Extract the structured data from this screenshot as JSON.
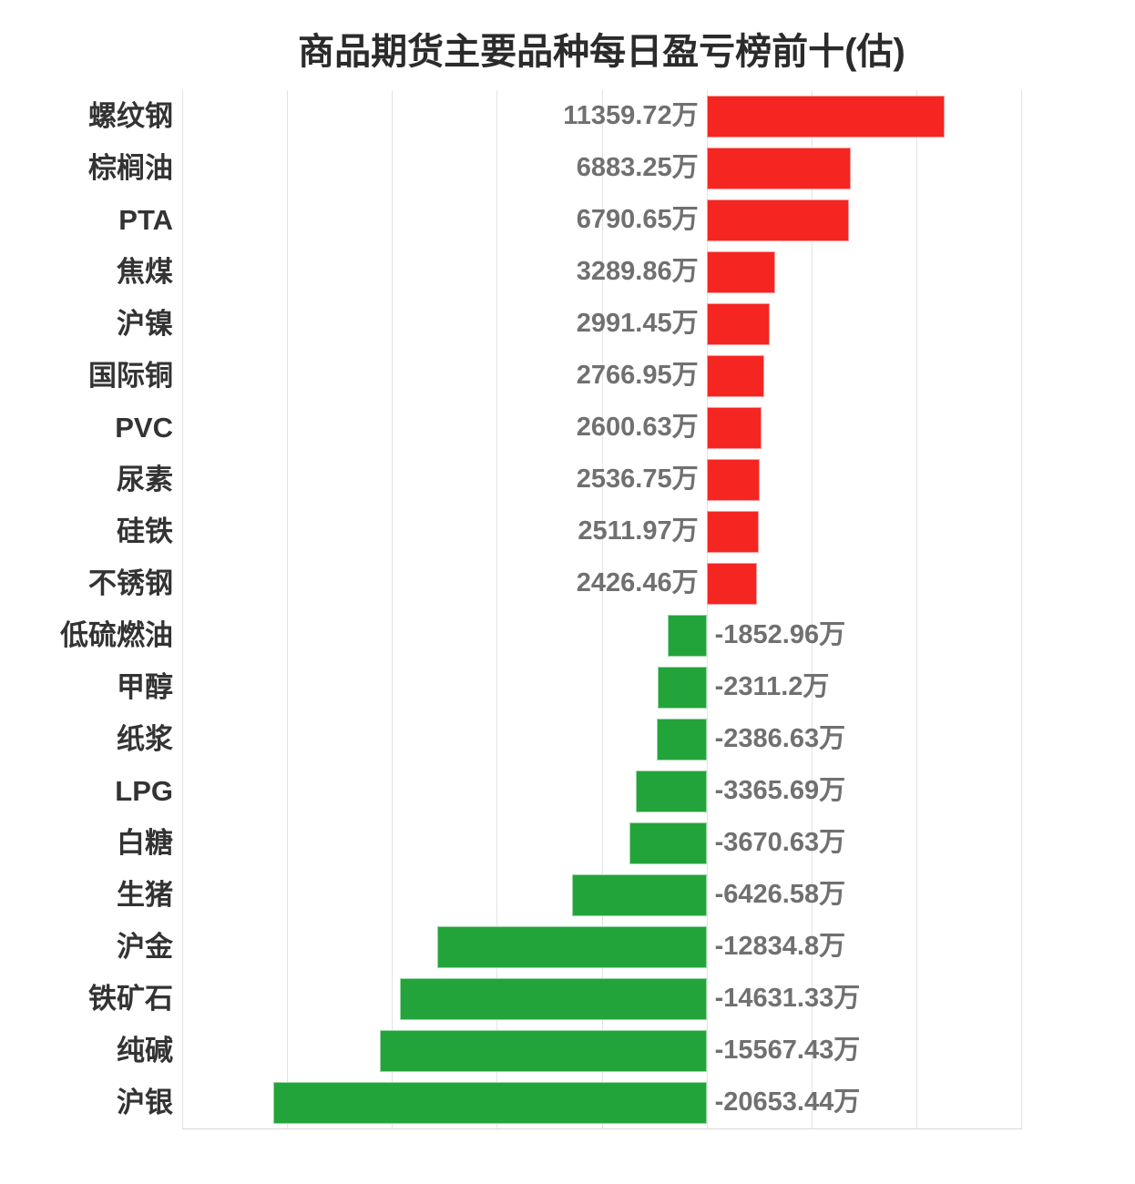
{
  "chart_data": {
    "type": "bar",
    "orientation": "horizontal",
    "title": "商品期货主要品种每日盈亏榜前十(估)",
    "unit": "万",
    "categories": [
      "螺纹钢",
      "棕榈油",
      "PTA",
      "焦煤",
      "沪镍",
      "国际铜",
      "PVC",
      "尿素",
      "硅铁",
      "不锈钢",
      "低硫燃油",
      "甲醇",
      "纸浆",
      "LPG",
      "白糖",
      "生猪",
      "沪金",
      "铁矿石",
      "纯碱",
      "沪银"
    ],
    "values": [
      11359.72,
      6883.25,
      6790.65,
      3289.86,
      2991.45,
      2766.95,
      2600.63,
      2536.75,
      2511.97,
      2426.46,
      -1852.96,
      -2311.2,
      -2386.63,
      -3365.69,
      -3670.63,
      -6426.58,
      -12834.8,
      -14631.33,
      -15567.43,
      -20653.44
    ],
    "value_labels": [
      "11359.72万",
      "6883.25万",
      "6790.65万",
      "3289.86万",
      "2991.45万",
      "2766.95万",
      "2600.63万",
      "2536.75万",
      "2511.97万",
      "2426.46万",
      "-1852.96万",
      "-2311.2万",
      "-2386.63万",
      "-3365.69万",
      "-3670.63万",
      "-6426.58万",
      "-12834.8万",
      "-14631.33万",
      "-15567.43万",
      "-20653.44万"
    ],
    "xlim": [
      -25000,
      15000
    ],
    "grid_interval": 5000,
    "grid": true,
    "legend": "none",
    "axis_tick_labels": "none",
    "colors": {
      "positive": "#F52522",
      "negative": "#23A43A",
      "gridline": "#e4e4e4",
      "axis": "#d9d9d9",
      "title": "#2b2b2b",
      "category_label": "#333333",
      "value_label": "#707070",
      "background": "#ffffff"
    }
  }
}
